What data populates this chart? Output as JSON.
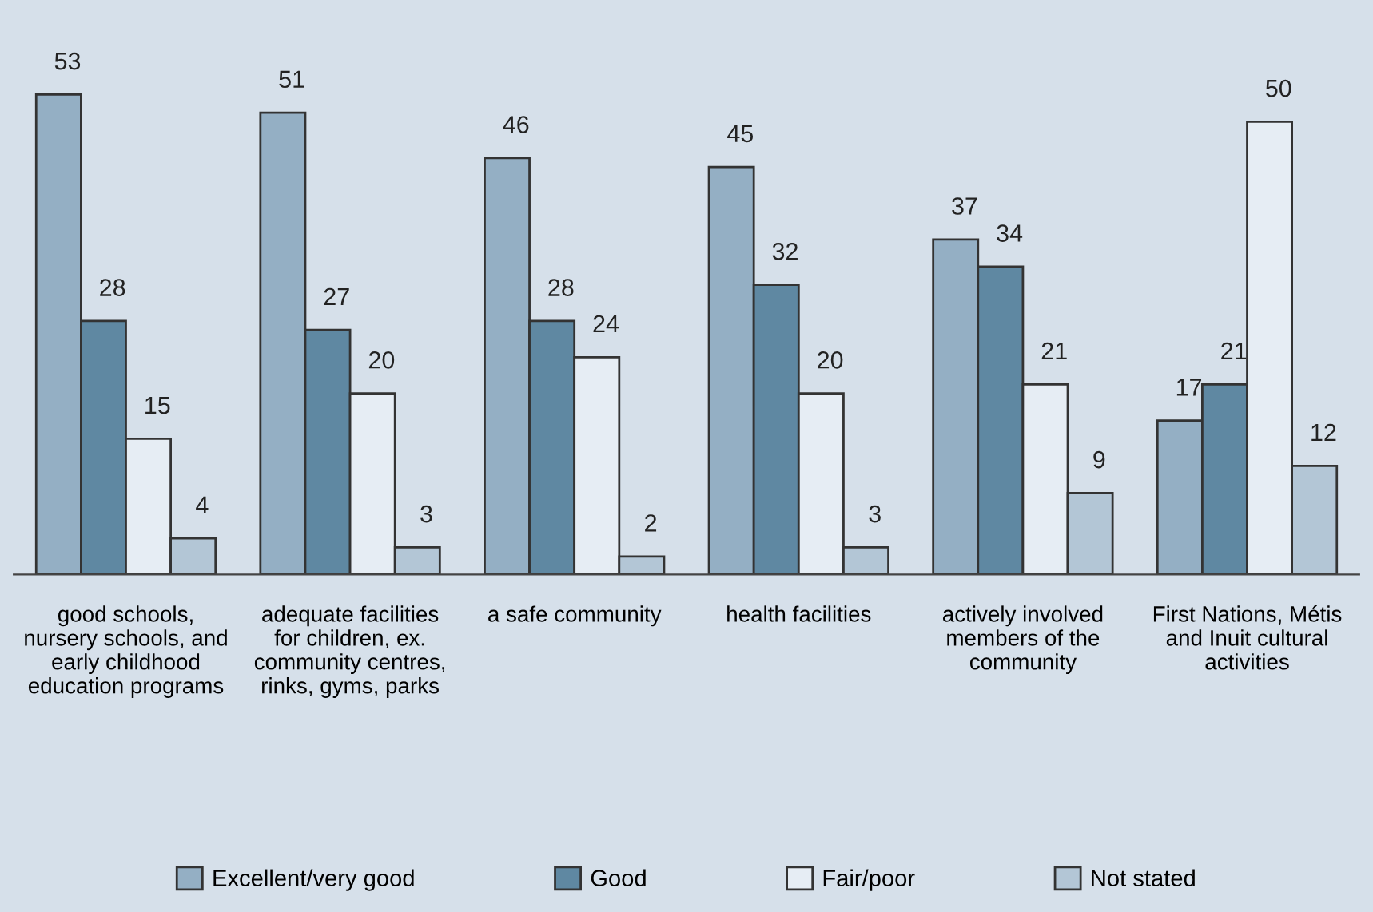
{
  "chart_data": {
    "type": "bar",
    "categories": [
      "good schools,\nnursery schools, and\nearly childhood\neducation programs",
      "adequate facilities\nfor children, ex.\ncommunity centres,\nrinks, gyms, parks",
      "a safe community",
      "health facilities",
      "actively involved\nmembers of the\ncommunity",
      "First Nations, Métis\nand Inuit cultural\nactivities"
    ],
    "series": [
      {
        "name": "Excellent/very good",
        "color": "#94afc4",
        "values": [
          53,
          51,
          46,
          45,
          37,
          17
        ]
      },
      {
        "name": "Good",
        "color": "#5f88a2",
        "values": [
          28,
          27,
          28,
          32,
          34,
          21
        ]
      },
      {
        "name": "Fair/poor",
        "color": "#e6edf4",
        "values": [
          15,
          20,
          24,
          20,
          21,
          50
        ]
      },
      {
        "name": "Not stated",
        "color": "#b3c6d6",
        "values": [
          4,
          3,
          2,
          3,
          9,
          12
        ]
      }
    ],
    "data_labels": true,
    "legend": "bottom",
    "grid": false,
    "tick_labels": "x"
  }
}
